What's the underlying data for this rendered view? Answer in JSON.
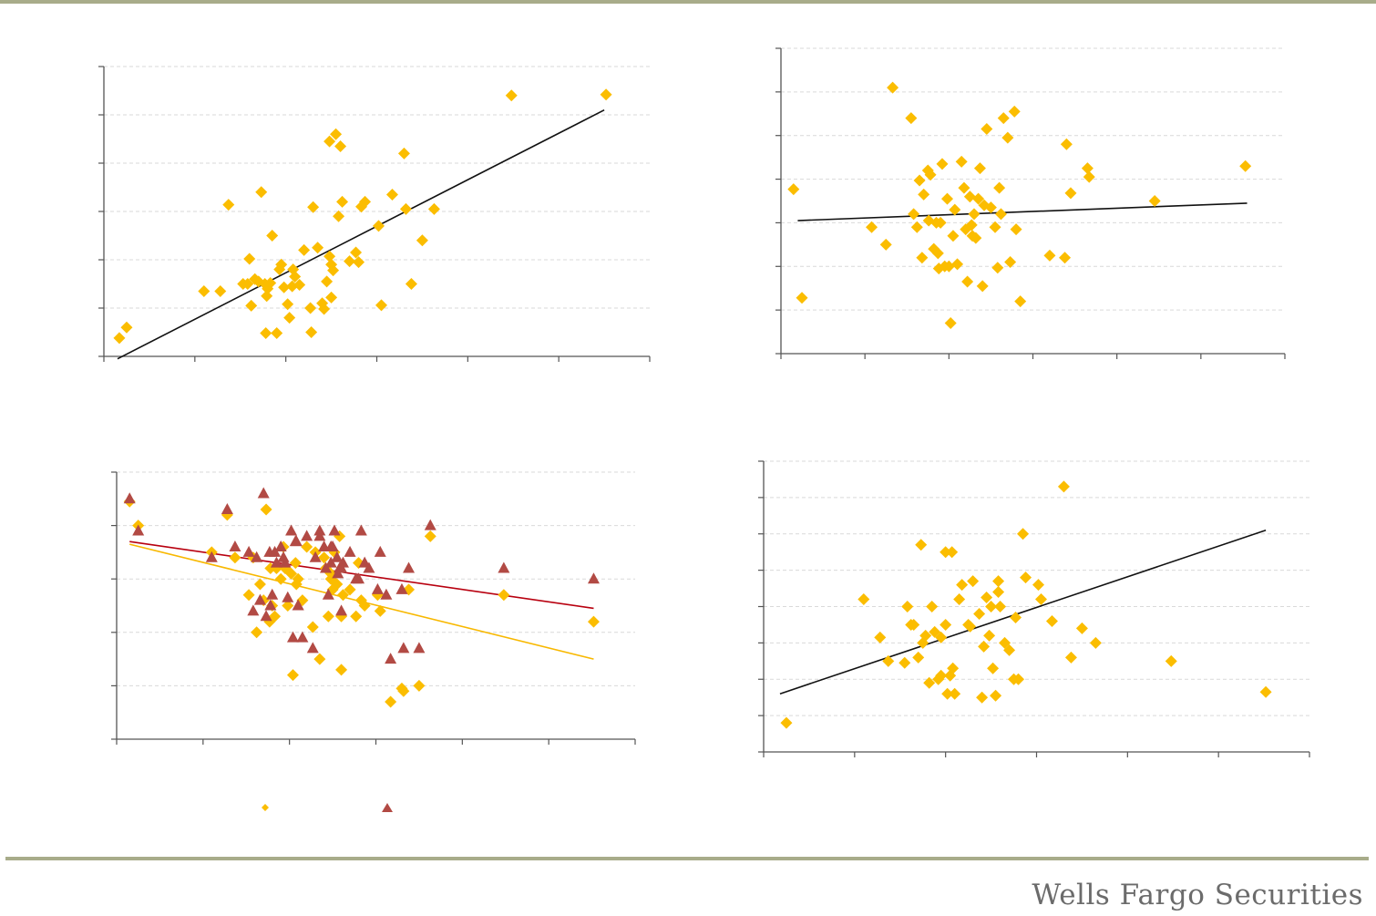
{
  "brand": {
    "name": "Wells Fargo Securities"
  },
  "colors": {
    "rule": "#a8ac8a",
    "axis": "#555555",
    "grid": "#d9d9d9",
    "marker_gold": "#fbbd00",
    "marker_red": "#b24a44",
    "fit_black": "#111111",
    "fit_red": "#b8000f",
    "fit_gold": "#f8b800",
    "brand_text": "#6b6b6b"
  },
  "chart_data": [
    {
      "type": "scatter",
      "title": "",
      "xlabel": "",
      "ylabel": "",
      "xlim": [
        0,
        6
      ],
      "ylim": [
        0,
        6
      ],
      "grid": true,
      "series": [
        {
          "marker": "diamond",
          "color": "#fbbd00",
          "x": [
            0.17,
            0.25,
            1.1,
            1.28,
            1.37,
            1.53,
            1.58,
            1.62,
            1.66,
            1.7,
            1.73,
            1.77,
            1.78,
            1.79,
            1.8,
            1.83,
            1.85,
            1.9,
            1.95,
            1.98,
            2.02,
            2.04,
            2.07,
            2.1,
            2.15,
            2.2,
            2.27,
            2.3,
            2.35,
            2.4,
            2.42,
            2.45,
            2.48,
            2.5,
            2.52,
            2.55,
            2.58,
            2.6,
            2.62,
            2.7,
            2.77,
            2.8,
            2.83,
            2.87,
            3.02,
            3.05,
            3.17,
            3.32,
            3.38,
            3.5,
            3.63,
            4.48,
            5.52,
            1.93,
            2.48,
            2.08,
            1.6,
            2.28,
            2.5,
            3.3
          ],
          "y": [
            0.38,
            0.6,
            1.35,
            1.35,
            3.14,
            1.5,
            1.5,
            1.05,
            1.6,
            1.55,
            3.4,
            1.5,
            0.48,
            1.25,
            1.4,
            1.52,
            2.5,
            0.48,
            1.9,
            1.43,
            1.08,
            0.8,
            1.45,
            1.65,
            1.48,
            2.2,
            1.0,
            3.09,
            2.25,
            1.1,
            0.98,
            1.55,
            2.07,
            1.9,
            1.78,
            4.6,
            2.9,
            4.35,
            3.2,
            1.97,
            2.15,
            1.95,
            3.1,
            3.2,
            2.7,
            1.06,
            3.35,
            3.05,
            1.5,
            2.4,
            3.05,
            5.4,
            5.42,
            1.8,
            4.45,
            1.8,
            2.02,
            0.5,
            1.22,
            4.2
          ]
        },
        {
          "kind": "fit",
          "color": "#111111",
          "x": [
            0.15,
            5.5
          ],
          "y": [
            -0.05,
            5.1
          ]
        }
      ]
    },
    {
      "type": "scatter",
      "title": "",
      "xlabel": "",
      "ylabel": "",
      "xlim": [
        0,
        6
      ],
      "ylim": [
        0,
        7
      ],
      "grid": true,
      "series": [
        {
          "marker": "diamond",
          "color": "#fbbd00",
          "x": [
            0.15,
            0.25,
            1.08,
            1.25,
            1.33,
            1.55,
            1.58,
            1.62,
            1.65,
            1.68,
            1.7,
            1.75,
            1.78,
            1.82,
            1.85,
            1.87,
            1.88,
            1.9,
            1.92,
            1.95,
            1.98,
            2.0,
            2.02,
            2.05,
            2.07,
            2.1,
            2.15,
            2.18,
            2.2,
            2.22,
            2.25,
            2.27,
            2.28,
            2.3,
            2.32,
            2.35,
            2.37,
            2.4,
            2.42,
            2.45,
            2.5,
            2.55,
            2.58,
            2.6,
            2.62,
            2.65,
            2.7,
            2.73,
            2.78,
            2.8,
            2.85,
            3.2,
            3.38,
            3.4,
            3.45,
            3.65,
            3.67,
            4.45,
            5.53,
            1.76
          ],
          "y": [
            3.77,
            1.28,
            2.9,
            2.5,
            6.1,
            5.4,
            3.2,
            2.9,
            3.97,
            2.2,
            3.65,
            4.2,
            4.1,
            2.4,
            3.0,
            2.3,
            1.95,
            3.0,
            4.35,
            2.0,
            3.55,
            2.0,
            0.7,
            2.7,
            3.3,
            2.05,
            4.4,
            3.8,
            2.85,
            1.65,
            3.6,
            2.95,
            2.7,
            3.2,
            2.65,
            3.55,
            4.25,
            1.55,
            3.4,
            5.15,
            3.35,
            2.9,
            1.97,
            3.8,
            3.2,
            5.4,
            4.95,
            2.1,
            5.55,
            2.85,
            1.2,
            2.25,
            2.2,
            4.8,
            3.68,
            4.25,
            4.05,
            3.5,
            4.3,
            3.05
          ]
        },
        {
          "kind": "fit",
          "color": "#111111",
          "x": [
            0.2,
            5.55
          ],
          "y": [
            3.05,
            3.45
          ]
        }
      ]
    },
    {
      "type": "scatter",
      "title": "",
      "xlabel": "",
      "ylabel": "",
      "xlim": [
        0,
        6
      ],
      "ylim": [
        0,
        5
      ],
      "grid": true,
      "series": [
        {
          "marker": "diamond",
          "color": "#fbbd00",
          "x": [
            0.15,
            0.25,
            1.1,
            1.28,
            1.37,
            1.53,
            1.58,
            1.62,
            1.66,
            1.7,
            1.73,
            1.77,
            1.78,
            1.8,
            1.83,
            1.85,
            1.9,
            1.95,
            1.98,
            2.02,
            2.04,
            2.07,
            2.1,
            2.15,
            2.2,
            2.27,
            2.3,
            2.35,
            2.4,
            2.42,
            2.45,
            2.48,
            2.5,
            2.52,
            2.55,
            2.58,
            2.6,
            2.62,
            2.7,
            2.77,
            2.8,
            2.83,
            2.87,
            3.02,
            3.05,
            3.17,
            3.32,
            3.38,
            3.5,
            3.63,
            4.48,
            5.52,
            1.93,
            2.48,
            2.08,
            3.3,
            2.6
          ],
          "y": [
            4.45,
            4.0,
            3.5,
            4.2,
            3.4,
            2.7,
            3.4,
            2.0,
            2.9,
            2.6,
            4.3,
            2.2,
            3.2,
            2.5,
            2.3,
            3.2,
            3.0,
            3.2,
            2.5,
            3.1,
            1.2,
            3.3,
            3.0,
            2.6,
            3.6,
            2.1,
            3.5,
            1.5,
            3.4,
            3.2,
            2.3,
            3.0,
            2.8,
            3.5,
            2.9,
            3.8,
            1.3,
            2.7,
            2.8,
            2.3,
            3.3,
            2.6,
            2.5,
            2.7,
            2.4,
            0.7,
            0.9,
            2.8,
            1.0,
            3.8,
            2.7,
            2.2,
            3.6,
            3.1,
            2.9,
            0.95,
            2.3
          ]
        },
        {
          "marker": "triangle",
          "color": "#b24a44",
          "x": [
            0.15,
            0.25,
            1.1,
            1.28,
            1.37,
            1.53,
            1.58,
            1.62,
            1.66,
            1.7,
            1.73,
            1.77,
            1.78,
            1.8,
            1.83,
            1.85,
            1.9,
            1.95,
            1.98,
            2.02,
            2.04,
            2.07,
            2.1,
            2.15,
            2.2,
            2.27,
            2.3,
            2.35,
            2.4,
            2.42,
            2.45,
            2.48,
            2.5,
            2.52,
            2.55,
            2.58,
            2.6,
            2.62,
            2.7,
            2.77,
            2.8,
            2.83,
            2.87,
            3.02,
            3.05,
            3.17,
            3.32,
            3.38,
            3.5,
            3.63,
            4.48,
            5.52,
            1.93,
            2.48,
            2.08,
            3.3,
            2.6,
            2.1,
            2.35,
            2.56,
            2.92,
            3.12
          ],
          "y": [
            4.5,
            3.9,
            3.4,
            4.3,
            3.6,
            3.5,
            2.4,
            3.4,
            2.6,
            4.6,
            2.3,
            3.5,
            2.5,
            2.7,
            3.5,
            3.3,
            3.6,
            3.3,
            2.65,
            3.9,
            1.9,
            3.7,
            2.5,
            1.9,
            3.8,
            1.7,
            3.4,
            3.9,
            3.6,
            3.2,
            2.7,
            3.3,
            3.6,
            3.9,
            3.4,
            3.2,
            2.4,
            3.3,
            3.5,
            3.0,
            3.0,
            3.9,
            3.3,
            2.8,
            3.5,
            1.5,
            1.7,
            3.2,
            1.7,
            4.0,
            3.2,
            3.0,
            3.4,
            3.6,
            3.7,
            2.8,
            3.2,
            2.5,
            3.8,
            3.1,
            3.2,
            2.7
          ]
        },
        {
          "kind": "fit",
          "color": "#b8000f",
          "x": [
            0.15,
            5.52
          ],
          "y": [
            3.7,
            2.45
          ]
        },
        {
          "kind": "fit",
          "color": "#f8b800",
          "x": [
            0.15,
            5.52
          ],
          "y": [
            3.65,
            1.5
          ]
        }
      ]
    },
    {
      "type": "scatter",
      "title": "",
      "xlabel": "",
      "ylabel": "",
      "xlim": [
        0,
        6
      ],
      "ylim": [
        0,
        8
      ],
      "grid": true,
      "series": [
        {
          "marker": "diamond",
          "color": "#fbbd00",
          "x": [
            0.25,
            1.1,
            1.28,
            1.37,
            1.55,
            1.58,
            1.62,
            1.65,
            1.7,
            1.73,
            1.75,
            1.78,
            1.82,
            1.85,
            1.88,
            1.92,
            1.95,
            2.0,
            2.0,
            2.02,
            2.05,
            2.07,
            2.1,
            2.15,
            2.18,
            2.25,
            2.27,
            2.3,
            2.37,
            2.4,
            2.42,
            2.45,
            2.5,
            2.52,
            2.55,
            2.58,
            2.6,
            2.65,
            2.7,
            2.75,
            2.77,
            2.8,
            2.85,
            3.02,
            3.05,
            3.17,
            3.3,
            3.38,
            3.5,
            3.65,
            4.48,
            5.52,
            1.95,
            2.48,
            2.08,
            2.58,
            2.88
          ],
          "y": [
            0.8,
            4.2,
            3.15,
            2.5,
            2.45,
            4.0,
            3.5,
            3.5,
            2.6,
            5.7,
            3.0,
            3.2,
            1.9,
            4.0,
            3.3,
            2.0,
            2.1,
            3.5,
            5.5,
            1.6,
            2.1,
            5.5,
            1.6,
            4.2,
            4.6,
            3.5,
            3.45,
            4.7,
            3.8,
            1.5,
            2.9,
            4.25,
            4.0,
            2.3,
            1.55,
            4.4,
            4.0,
            3.0,
            2.8,
            2.0,
            3.7,
            2.0,
            6.0,
            4.6,
            4.2,
            3.6,
            7.3,
            2.6,
            3.4,
            3.0,
            2.5,
            1.65,
            3.15,
            3.2,
            2.3,
            4.7,
            4.8
          ]
        },
        {
          "kind": "fit",
          "color": "#111111",
          "x": [
            0.18,
            5.52
          ],
          "y": [
            1.6,
            6.1
          ]
        }
      ]
    }
  ],
  "legend": {
    "entries": [
      {
        "marker": "diamond",
        "color": "#fbbd00",
        "label": ""
      },
      {
        "marker": "triangle",
        "color": "#b24a44",
        "label": ""
      }
    ]
  }
}
